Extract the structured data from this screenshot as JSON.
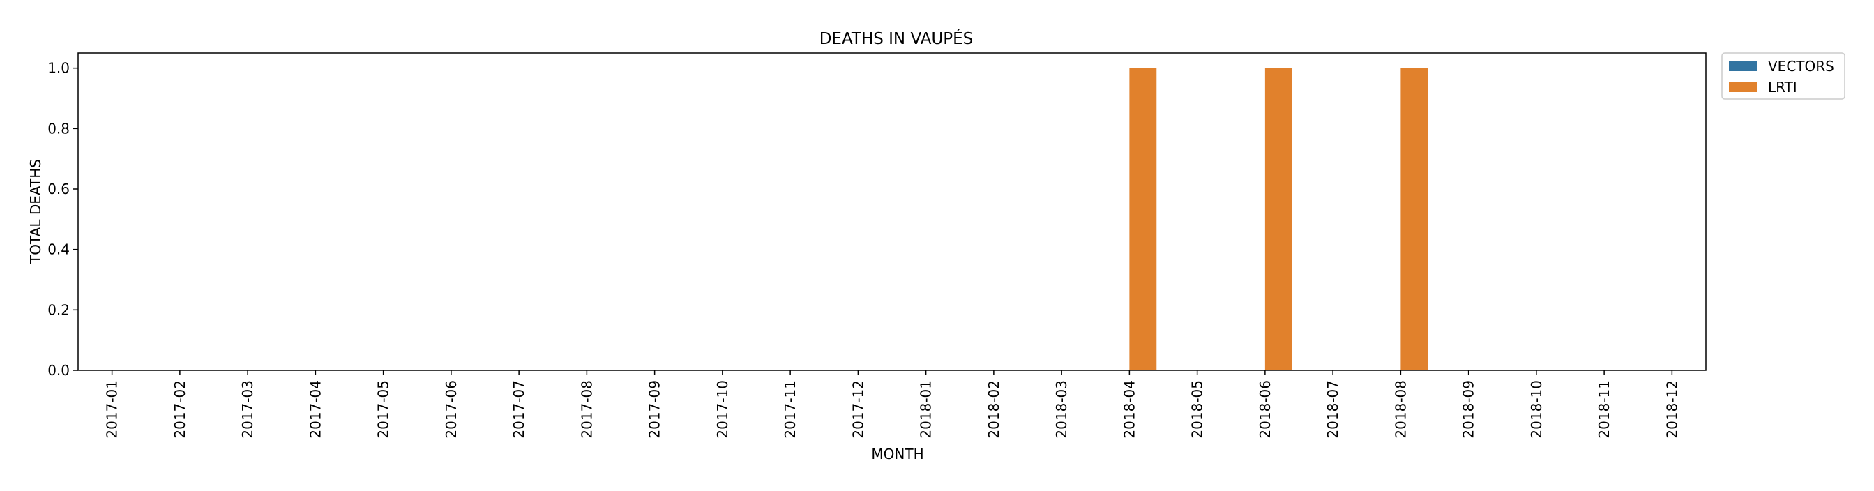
{
  "chart_data": {
    "type": "bar",
    "title": "DEATHS IN VAUPÉS",
    "xlabel": "MONTH",
    "ylabel": "TOTAL DEATHS",
    "ylim": [
      0,
      1.05
    ],
    "yticks": [
      0.0,
      0.2,
      0.4,
      0.6,
      0.8,
      1.0
    ],
    "ytick_labels": [
      "0.0",
      "0.2",
      "0.4",
      "0.6",
      "0.8",
      "1.0"
    ],
    "categories": [
      "2017-01",
      "2017-02",
      "2017-03",
      "2017-04",
      "2017-05",
      "2017-06",
      "2017-07",
      "2017-08",
      "2017-09",
      "2017-10",
      "2017-11",
      "2017-12",
      "2018-01",
      "2018-02",
      "2018-03",
      "2018-04",
      "2018-05",
      "2018-06",
      "2018-07",
      "2018-08",
      "2018-09",
      "2018-10",
      "2018-11",
      "2018-12"
    ],
    "series": [
      {
        "name": "VECTORS",
        "color": "#3274a1",
        "values": [
          0,
          0,
          0,
          0,
          0,
          0,
          0,
          0,
          0,
          0,
          0,
          0,
          0,
          0,
          0,
          0,
          0,
          0,
          0,
          0,
          0,
          0,
          0,
          0
        ]
      },
      {
        "name": "LRTI",
        "color": "#e1812c",
        "values": [
          0,
          0,
          0,
          0,
          0,
          0,
          0,
          0,
          0,
          0,
          0,
          0,
          0,
          0,
          0,
          1,
          0,
          1,
          0,
          1,
          0,
          0,
          0,
          0
        ]
      }
    ],
    "grid": false,
    "legend": "outside-top-right"
  }
}
